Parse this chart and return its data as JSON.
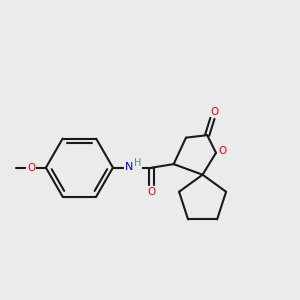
{
  "bg_color": "#ebebeb",
  "bond_color": "#1a1a1a",
  "atom_colors": {
    "O": "#ff0000",
    "N": "#0000cd",
    "H": "#4a8f8f",
    "C": "#1a1a1a"
  },
  "line_width": 1.5,
  "dbo": 0.06
}
